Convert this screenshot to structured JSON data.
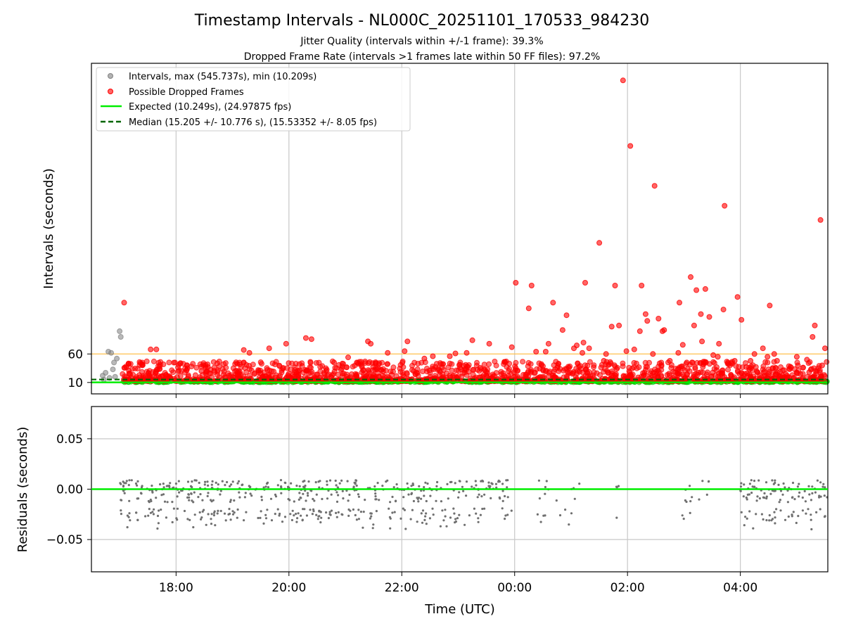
{
  "figure": {
    "title": "Timestamp Intervals - NL000C_20251101_170533_984230",
    "subtitle_1": "Jitter Quality (intervals within +/-1 frame): 39.3%",
    "subtitle_2": "Dropped Frame Rate (intervals >1 frames late within 50 FF files): 97.2%"
  },
  "chart_data": [
    {
      "type": "scatter",
      "panel": "intervals",
      "xlabel": "",
      "ylabel": "Intervals (seconds)",
      "x_unit": "hours since 00:00 UTC 2025-11-02 (negative = 2025-11-01)",
      "xlim": [
        -7.5,
        5.55
      ],
      "ylim": [
        -10,
        570
      ],
      "x_tick_labels": [
        "18:00",
        "20:00",
        "22:00",
        "00:00",
        "02:00",
        "04:00"
      ],
      "x_tick_values": [
        -6,
        -4,
        -2,
        0,
        2,
        4
      ],
      "y_tick_labels": [
        "10",
        "60"
      ],
      "y_tick_values": [
        10,
        60
      ],
      "grid": "vertical",
      "legend_position": "top-left",
      "legend": [
        {
          "label": "Intervals, max (545.737s), min (10.209s)",
          "kind": "marker",
          "color": "#808080"
        },
        {
          "label": "Possible Dropped Frames",
          "kind": "marker",
          "color": "#ff0000"
        },
        {
          "label": "Expected (10.249s), (24.97875 fps)",
          "kind": "line",
          "color": "#00ee00"
        },
        {
          "label": "Median (15.205 +/- 10.776 s), (15.53352 +/- 8.05 fps)",
          "kind": "dashed",
          "color": "#006400"
        }
      ],
      "reference_lines": {
        "expected": 10.249,
        "median": 15.205,
        "threshold": 60,
        "threshold_color": "#ffc04d"
      },
      "series": [
        {
          "name": "Intervals",
          "color": "#808080",
          "points": [
            [
              -7.3,
              22
            ],
            [
              -7.25,
              27
            ],
            [
              -7.2,
              64
            ],
            [
              -7.15,
              62
            ],
            [
              -7.12,
              33
            ],
            [
              -7.1,
              45
            ],
            [
              -7.05,
              52
            ],
            [
              -7.0,
              100
            ],
            [
              -6.98,
              90
            ],
            [
              -7.28,
              15
            ],
            [
              -7.18,
              18
            ],
            [
              -7.08,
              20
            ]
          ]
        },
        {
          "name": "Possible Dropped Frames",
          "color": "#ff0000",
          "points": [
            [
              -6.92,
              150
            ],
            [
              -6.45,
              68
            ],
            [
              -6.35,
              68
            ],
            [
              -6.6,
              42
            ],
            [
              -5.55,
              30
            ],
            [
              -4.8,
              67
            ],
            [
              -4.7,
              62
            ],
            [
              -4.35,
              70
            ],
            [
              -4.05,
              78
            ],
            [
              -3.7,
              88
            ],
            [
              -3.6,
              86
            ],
            [
              -3.2,
              45
            ],
            [
              -2.95,
              54
            ],
            [
              -2.6,
              82
            ],
            [
              -2.55,
              78
            ],
            [
              -2.4,
              44
            ],
            [
              -2.25,
              62
            ],
            [
              -1.95,
              65
            ],
            [
              -1.9,
              82
            ],
            [
              -1.6,
              52
            ],
            [
              -1.45,
              56
            ],
            [
              -1.15,
              56
            ],
            [
              -1.05,
              61
            ],
            [
              -0.85,
              62
            ],
            [
              -0.75,
              84
            ],
            [
              -0.45,
              78
            ],
            [
              -0.05,
              72
            ],
            [
              0.02,
              185
            ],
            [
              0.25,
              140
            ],
            [
              0.3,
              180
            ],
            [
              0.38,
              64
            ],
            [
              0.55,
              64
            ],
            [
              0.6,
              78
            ],
            [
              0.68,
              150
            ],
            [
              0.85,
              102
            ],
            [
              0.92,
              128
            ],
            [
              1.05,
              70
            ],
            [
              1.1,
              75
            ],
            [
              1.2,
              62
            ],
            [
              1.22,
              80
            ],
            [
              1.25,
              185
            ],
            [
              1.32,
              70
            ],
            [
              1.5,
              255
            ],
            [
              1.58,
              48
            ],
            [
              1.62,
              60
            ],
            [
              1.72,
              108
            ],
            [
              1.78,
              180
            ],
            [
              1.85,
              110
            ],
            [
              1.92,
              540
            ],
            [
              1.98,
              65
            ],
            [
              2.05,
              425
            ],
            [
              2.12,
              68
            ],
            [
              2.22,
              100
            ],
            [
              2.25,
              180
            ],
            [
              2.32,
              130
            ],
            [
              2.35,
              118
            ],
            [
              2.45,
              60
            ],
            [
              2.48,
              355
            ],
            [
              2.55,
              122
            ],
            [
              2.62,
              100
            ],
            [
              2.65,
              102
            ],
            [
              2.75,
              48
            ],
            [
              2.9,
              62
            ],
            [
              2.92,
              150
            ],
            [
              2.98,
              76
            ],
            [
              3.05,
              45
            ],
            [
              3.12,
              195
            ],
            [
              3.18,
              110
            ],
            [
              3.22,
              172
            ],
            [
              3.3,
              130
            ],
            [
              3.32,
              82
            ],
            [
              3.38,
              174
            ],
            [
              3.45,
              125
            ],
            [
              3.52,
              58
            ],
            [
              3.6,
              55
            ],
            [
              3.62,
              78
            ],
            [
              3.7,
              138
            ],
            [
              3.72,
              320
            ],
            [
              3.78,
              45
            ],
            [
              3.9,
              48
            ],
            [
              3.95,
              160
            ],
            [
              4.02,
              120
            ],
            [
              4.18,
              48
            ],
            [
              4.25,
              60
            ],
            [
              4.4,
              70
            ],
            [
              4.48,
              55
            ],
            [
              4.52,
              145
            ],
            [
              4.6,
              60
            ],
            [
              4.65,
              48
            ],
            [
              5.0,
              55
            ],
            [
              5.02,
              40
            ],
            [
              5.18,
              50
            ],
            [
              5.22,
              28
            ],
            [
              5.28,
              90
            ],
            [
              5.32,
              110
            ],
            [
              5.38,
              35
            ],
            [
              5.42,
              295
            ],
            [
              5.45,
              40
            ],
            [
              5.5,
              70
            ]
          ]
        }
      ],
      "dense_band": {
        "x_start": -6.95,
        "x_end": 5.55,
        "y_min": 10.2,
        "y_max": 45,
        "note": "hundreds of dropped-frame markers overlapping just above the expected interval"
      }
    },
    {
      "type": "scatter",
      "panel": "residuals",
      "xlabel": "Time (UTC)",
      "ylabel": "Residuals (seconds)",
      "xlim": [
        -7.5,
        5.55
      ],
      "ylim": [
        -0.082,
        0.082
      ],
      "x_tick_labels": [
        "18:00",
        "20:00",
        "22:00",
        "00:00",
        "02:00",
        "04:00"
      ],
      "x_tick_values": [
        -6,
        -4,
        -2,
        0,
        2,
        4
      ],
      "y_tick_labels": [
        "0.05",
        "0.00",
        "−0.05"
      ],
      "y_tick_values": [
        0.05,
        0.0,
        -0.05
      ],
      "grid": "both",
      "zero_line_color": "#00ee00",
      "point_color": "#707070",
      "segments": [
        {
          "x_start": -7.0,
          "x_end": -0.05,
          "density": "high"
        },
        {
          "x_start": 0.4,
          "x_end": 1.15,
          "density": "low"
        },
        {
          "x_start": 1.8,
          "x_end": 1.85,
          "density": "low"
        },
        {
          "x_start": 2.95,
          "x_end": 3.45,
          "density": "low"
        },
        {
          "x_start": 4.0,
          "x_end": 5.55,
          "density": "high"
        }
      ],
      "residual_range": [
        -0.04,
        0.009
      ]
    }
  ]
}
